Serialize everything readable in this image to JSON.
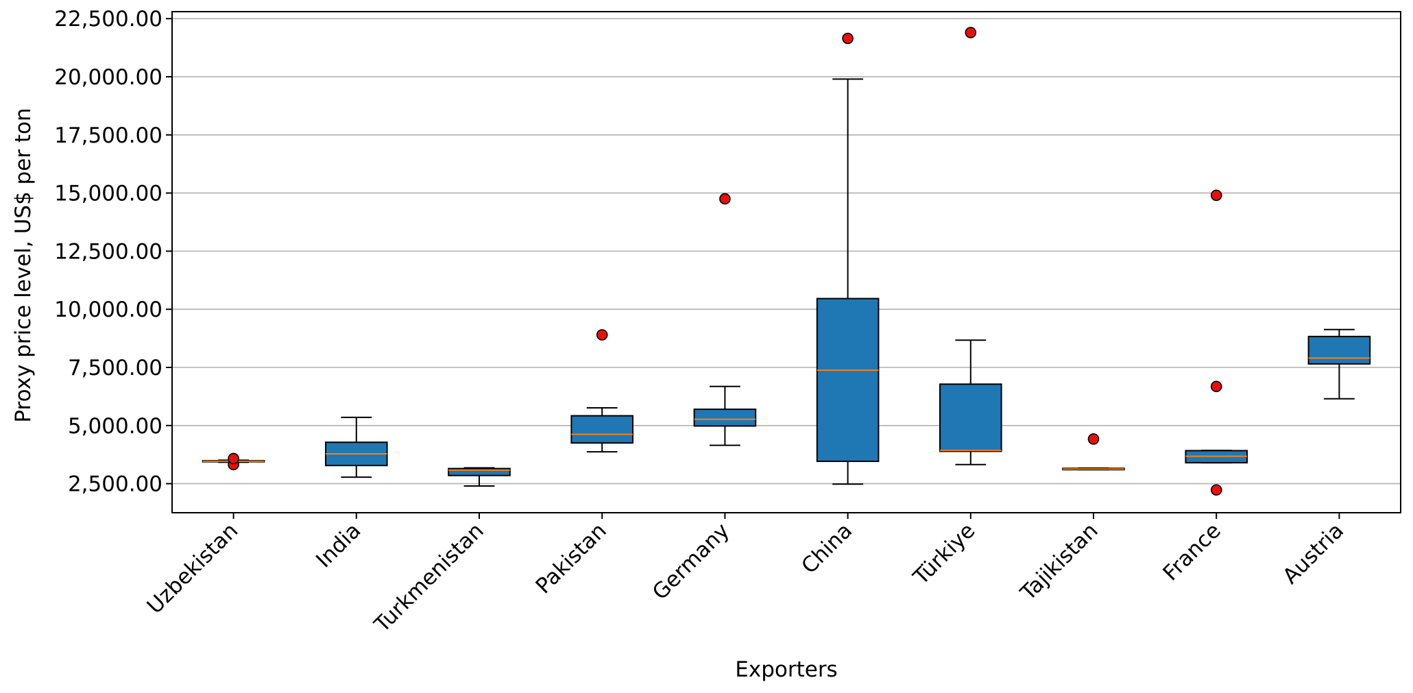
{
  "chart_data": {
    "type": "box",
    "title": "",
    "xlabel": "Exporters",
    "ylabel": "Proxy price level, US$ per ton",
    "ylim": [
      1250,
      22800
    ],
    "y_ticks": [
      2500,
      5000,
      7500,
      10000,
      12500,
      15000,
      17500,
      20000,
      22500
    ],
    "y_tick_labels": [
      "2,500.00",
      "5,000.00",
      "7,500.00",
      "10,000.00",
      "12,500.00",
      "15,000.00",
      "17,500.00",
      "20,000.00",
      "22,500.00"
    ],
    "grid": "y",
    "legend": "none",
    "box_color": "#1f77b4",
    "median_color": "#ff7f0e",
    "outlier_color": "#e8100f",
    "categories": [
      "Uzbekistan",
      "India",
      "Turkmenistan",
      "Pakistan",
      "Germany",
      "China",
      "Türkiye",
      "Tajikistan",
      "France",
      "Austria"
    ],
    "boxes": [
      {
        "category": "Uzbekistan",
        "whislo": 3420,
        "q1": 3440,
        "med": 3465,
        "q3": 3490,
        "whishi": 3510,
        "fliers": [
          3320,
          3580
        ]
      },
      {
        "category": "India",
        "whislo": 2780,
        "q1": 3280,
        "med": 3780,
        "q3": 4280,
        "whishi": 5350,
        "fliers": []
      },
      {
        "category": "Turkmenistan",
        "whislo": 2400,
        "q1": 2850,
        "med": 3080,
        "q3": 3150,
        "whishi": 3180,
        "fliers": []
      },
      {
        "category": "Pakistan",
        "whislo": 3870,
        "q1": 4250,
        "med": 4620,
        "q3": 5420,
        "whishi": 5760,
        "fliers": [
          8900
        ]
      },
      {
        "category": "Germany",
        "whislo": 4150,
        "q1": 4980,
        "med": 5270,
        "q3": 5700,
        "whishi": 6680,
        "fliers": [
          14750
        ]
      },
      {
        "category": "China",
        "whislo": 2480,
        "q1": 3460,
        "med": 7380,
        "q3": 10460,
        "whishi": 19900,
        "fliers": [
          21650
        ]
      },
      {
        "category": "Türkiye",
        "whislo": 3320,
        "q1": 3890,
        "med": 3930,
        "q3": 6780,
        "whishi": 8670,
        "fliers": [
          21900
        ]
      },
      {
        "category": "Tajikistan",
        "whislo": 3100,
        "q1": 3100,
        "med": 3130,
        "q3": 3160,
        "whishi": 3170,
        "fliers": [
          4420
        ]
      },
      {
        "category": "France",
        "whislo": 3400,
        "q1": 3400,
        "med": 3680,
        "q3": 3920,
        "whishi": 3930,
        "fliers": [
          2230,
          6680,
          14900
        ]
      },
      {
        "category": "Austria",
        "whislo": 6150,
        "q1": 7650,
        "med": 7900,
        "q3": 8830,
        "whishi": 9130,
        "fliers": []
      }
    ]
  }
}
